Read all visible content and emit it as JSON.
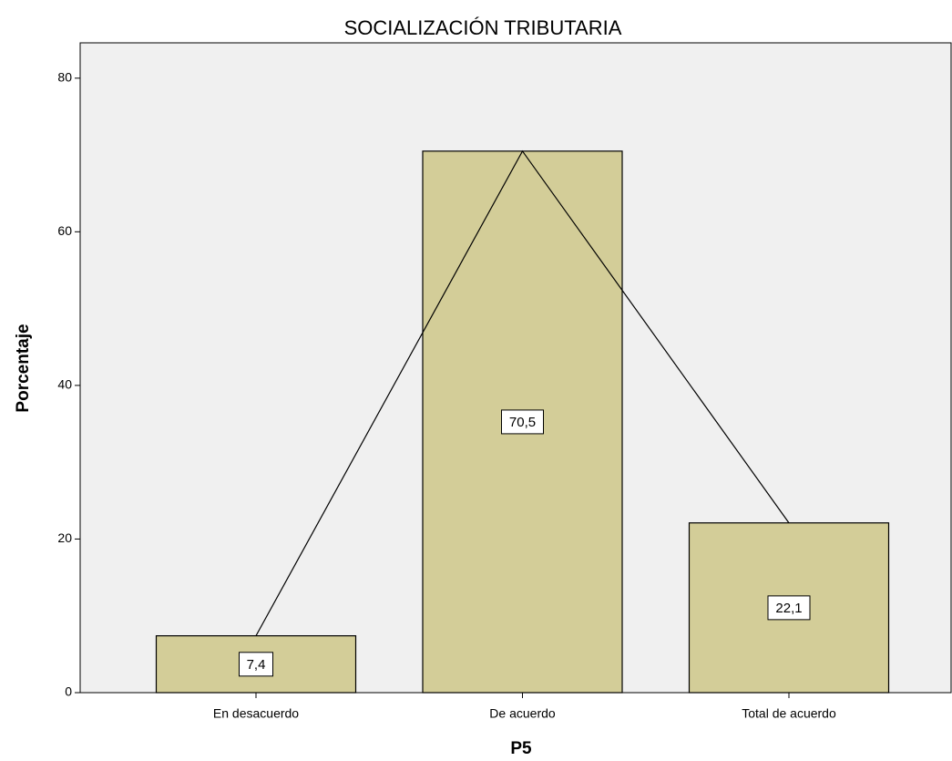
{
  "chart_data": {
    "type": "bar",
    "title": "SOCIALIZACIÓN TRIBUTARIA",
    "x_label": "P5",
    "y_label": "Porcentaje",
    "categories": [
      "En desacuerdo",
      "De acuerdo",
      "Total de acuerdo"
    ],
    "values": [
      7.4,
      70.5,
      22.1
    ],
    "value_labels": [
      "7,4",
      "70,5",
      "22,1"
    ],
    "color": "#d3cd98",
    "line_overlay": true,
    "ylim": [
      0,
      84.6
    ],
    "yticks": [
      0,
      20,
      40,
      60,
      80
    ],
    "grid": false
  }
}
